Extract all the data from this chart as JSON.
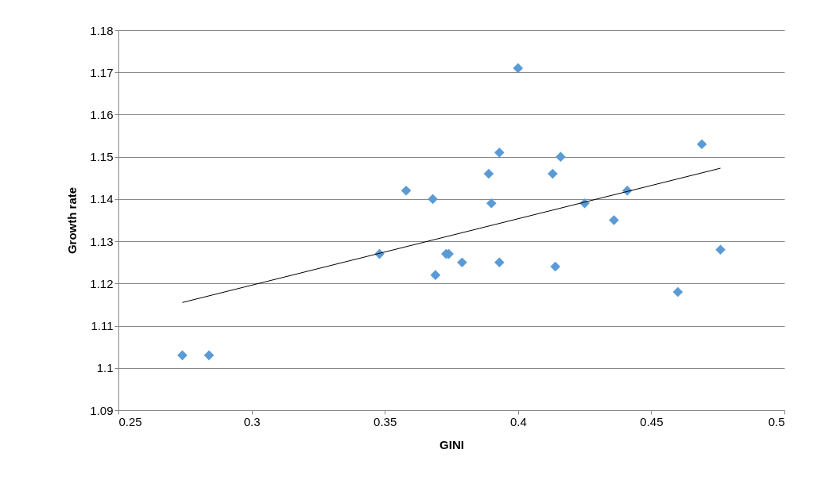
{
  "chart_data": {
    "type": "scatter",
    "xlabel": "GINI",
    "ylabel": "Growth rate",
    "xlim": [
      0.25,
      0.5
    ],
    "xticks": [
      0.25,
      0.3,
      0.35,
      0.4,
      0.45,
      0.5
    ],
    "ylim": [
      1.09,
      1.18
    ],
    "yticks": [
      1.09,
      1.1,
      1.11,
      1.12,
      1.13,
      1.14,
      1.15,
      1.16,
      1.17,
      1.18
    ],
    "grid": "y",
    "marker": "diamond",
    "series": [
      {
        "color": "#5b9bd5",
        "x": [
          0.274,
          0.284,
          0.348,
          0.358,
          0.368,
          0.369,
          0.373,
          0.374,
          0.379,
          0.389,
          0.39,
          0.393,
          0.393,
          0.4,
          0.413,
          0.414,
          0.416,
          0.425,
          0.436,
          0.441,
          0.46,
          0.469,
          0.476
        ],
        "values": [
          1.103,
          1.103,
          1.127,
          1.142,
          1.14,
          1.122,
          1.127,
          1.127,
          1.125,
          1.146,
          1.139,
          1.151,
          1.125,
          1.171,
          1.146,
          1.124,
          1.15,
          1.139,
          1.135,
          1.142,
          1.118,
          1.153,
          1.128
        ]
      },
      {
        "type": "line",
        "marker": "none",
        "color": "#000000",
        "x": [
          0.274,
          0.476
        ],
        "values": [
          1.1155,
          1.1473
        ]
      }
    ]
  }
}
